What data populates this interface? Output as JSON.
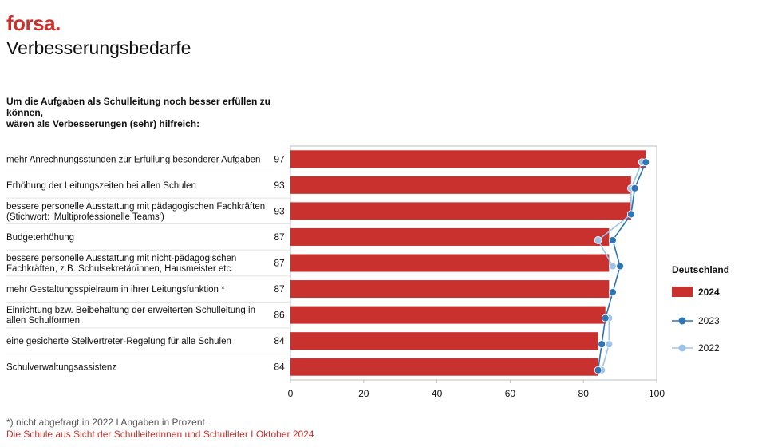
{
  "header": {
    "brand": "forsa.",
    "title": "Verbesserungsbedarfe",
    "question_line1": "Um die Aufgaben als Schulleitung noch besser erfüllen zu können,",
    "question_line2": "wären als Verbesserungen (sehr) hilfreich:"
  },
  "footer": {
    "footnote": "*) nicht abgefragt in 2022 I Angaben in Prozent",
    "source": "Die Schule aus Sicht der Schulleiterinnen und Schulleiter I Oktober 2024"
  },
  "colors": {
    "bar_2024": "#c8312d",
    "line_2023": "#2e75b6",
    "line_2022": "#9dc3e6",
    "axis": "#bfbfbf"
  },
  "chart_data": {
    "type": "bar",
    "orientation": "horizontal",
    "categories": [
      [
        "mehr Anrechnungsstunden zur Erfüllung besonderer Aufgaben"
      ],
      [
        "Erhöhung der Leitungszeiten bei allen Schulen"
      ],
      [
        "bessere personelle Ausstattung mit pädagogischen Fachkräften",
        "(Stichwort: 'Multiprofessionelle Teams')"
      ],
      [
        "Budgeterhöhung"
      ],
      [
        "bessere personelle Ausstattung mit nicht-pädagogischen",
        "Fachkräften, z.B. Schulsekretär/innen, Hausmeister etc."
      ],
      [
        "mehr Gestaltungsspielraum in ihrer Leitungsfunktion *"
      ],
      [
        "Einrichtung bzw. Beibehaltung der erweiterten Schulleitung in",
        "allen Schulformen"
      ],
      [
        "eine gesicherte Stellvertreter-Regelung für alle Schulen"
      ],
      [
        "Schulverwaltungsassistenz"
      ]
    ],
    "series": [
      {
        "name": "2024",
        "kind": "bar",
        "values": [
          97,
          93,
          93,
          87,
          87,
          87,
          86,
          84,
          84
        ],
        "labels": [
          "97",
          "93",
          "93",
          "87",
          "87",
          "87",
          "86",
          "84",
          "84"
        ]
      },
      {
        "name": "2023",
        "kind": "line",
        "values": [
          97,
          94,
          93,
          88,
          90,
          88,
          86,
          85,
          84
        ]
      },
      {
        "name": "2022",
        "kind": "line",
        "values": [
          96,
          93,
          93,
          84,
          88,
          null,
          87,
          87,
          85
        ]
      }
    ],
    "xlim": [
      0,
      100
    ],
    "xticks": [
      "0",
      "20",
      "40",
      "60",
      "80",
      "100"
    ],
    "legend": {
      "title": "Deutschland",
      "position": "right",
      "entries": [
        "2024",
        "2023",
        "2022"
      ]
    },
    "grid": false
  }
}
